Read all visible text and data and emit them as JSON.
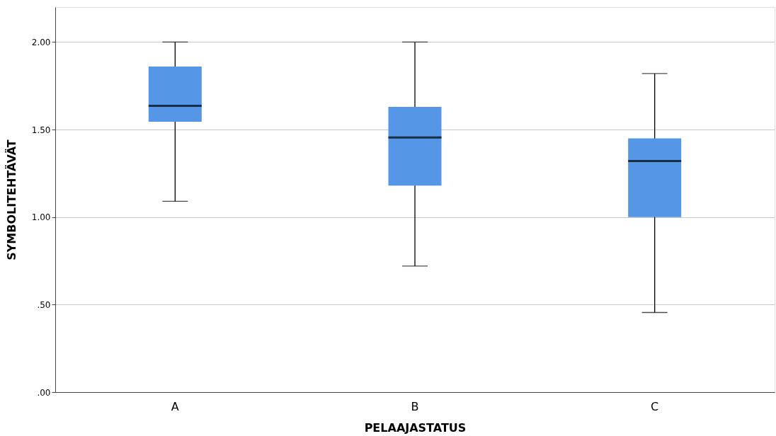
{
  "chart_data": {
    "type": "box",
    "xlabel": "PELAAJASTATUS",
    "ylabel": "SYMBOLITEHTÄVÄT",
    "categories": [
      "A",
      "B",
      "C"
    ],
    "color": "#5596e6",
    "boxes": [
      {
        "low": 1.09,
        "q1": 1.545,
        "median": 1.636,
        "q3": 1.86,
        "high": 2.0
      },
      {
        "low": 0.72,
        "q1": 1.18,
        "median": 1.455,
        "q3": 1.63,
        "high": 2.0
      },
      {
        "low": 0.455,
        "q1": 1.0,
        "median": 1.32,
        "q3": 1.45,
        "high": 1.82
      }
    ],
    "ylim": [
      0,
      2.2
    ],
    "yticks": [
      {
        "value": 0,
        "label": ".00"
      },
      {
        "value": 0.5,
        "label": ".50"
      },
      {
        "value": 1.0,
        "label": "1.00"
      },
      {
        "value": 1.5,
        "label": "1.50"
      },
      {
        "value": 2.0,
        "label": "2.00"
      }
    ],
    "grid": "y"
  }
}
